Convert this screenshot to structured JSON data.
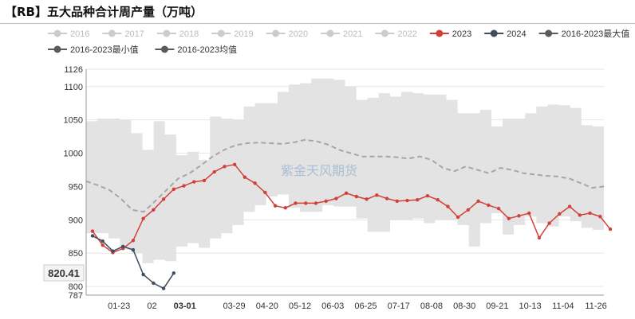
{
  "title": "【RB】五大品种合计周产量（万吨）",
  "watermark": "紫金天风期货",
  "colors": {
    "band": "#e3e3e3",
    "avg": "#a6a6a6",
    "y2023": "#d2403a",
    "y2024": "#3f4d5e",
    "legend_dim": "#cccccc",
    "legend_max": "#5a5a5a",
    "grid": "#e6e6e6"
  },
  "legend": [
    {
      "label": "2016",
      "state": "dim"
    },
    {
      "label": "2017",
      "state": "dim"
    },
    {
      "label": "2018",
      "state": "dim"
    },
    {
      "label": "2019",
      "state": "dim"
    },
    {
      "label": "2020",
      "state": "dim"
    },
    {
      "label": "2021",
      "state": "dim"
    },
    {
      "label": "2022",
      "state": "dim"
    },
    {
      "label": "2023",
      "state": "active",
      "color": "#d2403a"
    },
    {
      "label": "2024",
      "state": "active",
      "color": "#3f4d5e"
    },
    {
      "label": "2016-2023最大值",
      "state": "active",
      "color": "#5a5a5a"
    },
    {
      "label": "2016-2023最小值",
      "state": "active",
      "color": "#5a5a5a"
    },
    {
      "label": "2016-2023均值",
      "state": "active",
      "color": "#5a5a5a"
    }
  ],
  "chart_data": {
    "type": "line",
    "title": "【RB】五大品种合计周产量（万吨）",
    "ylim": [
      787,
      1126
    ],
    "y_ticks": [
      787,
      800,
      850,
      900,
      950,
      1000,
      1050,
      1100,
      1126
    ],
    "x_labels": [
      "01-23",
      "02",
      "03-01",
      "03-29",
      "04-20",
      "05-12",
      "06-03",
      "06-25",
      "07-17",
      "08-08",
      "08-30",
      "09-21",
      "10-13",
      "11-04",
      "11-26"
    ],
    "x_label_positions": [
      2,
      4,
      6,
      9,
      11,
      13,
      15,
      17,
      19,
      21,
      23,
      25,
      27,
      29,
      31
    ],
    "highlighted_x_label": "03-01",
    "grid": true,
    "band": {
      "name": "2016-2023最大值 / 2016-2023最小值",
      "max": [
        1048,
        1052,
        1052,
        1050,
        1030,
        1005,
        1048,
        1028,
        997,
        1002,
        990,
        1055,
        1052,
        1050,
        1070,
        1075,
        1075,
        1092,
        1103,
        1105,
        1112,
        1112,
        1110,
        1100,
        1080,
        1083,
        1090,
        1085,
        1092,
        1090,
        1088,
        1088,
        1080,
        1060,
        1060,
        1065,
        1040,
        1052,
        1052,
        1060,
        1070,
        1073,
        1072,
        1068,
        1042,
        1040
      ],
      "min": [
        880,
        880,
        872,
        855,
        850,
        835,
        840,
        838,
        860,
        865,
        858,
        872,
        880,
        892,
        912,
        922,
        935,
        938,
        918,
        912,
        912,
        922,
        920,
        920,
        902,
        882,
        882,
        900,
        900,
        902,
        895,
        900,
        900,
        892,
        860,
        895,
        910,
        878,
        892,
        905,
        895,
        890,
        905,
        898,
        888,
        885
      ]
    },
    "series": [
      {
        "name": "2016-2023均值",
        "style": "dashed",
        "values": [
          958,
          952,
          945,
          932,
          915,
          912,
          928,
          945,
          962,
          970,
          982,
          995,
          1005,
          1012,
          1015,
          1016,
          1015,
          1014,
          1016,
          1020,
          1018,
          1013,
          1005,
          1000,
          995,
          995,
          995,
          994,
          992,
          995,
          990,
          978,
          973,
          980,
          975,
          970,
          978,
          975,
          970,
          968,
          966,
          965,
          962,
          955,
          948,
          950
        ]
      },
      {
        "name": "2023",
        "values": [
          883,
          862,
          851,
          857,
          869,
          902,
          915,
          931,
          946,
          951,
          957,
          959,
          972,
          980,
          983,
          964,
          955,
          941,
          921,
          918,
          925,
          925,
          925,
          928,
          932,
          940,
          935,
          931,
          937,
          932,
          928,
          929,
          930,
          936,
          930,
          920,
          904,
          915,
          928,
          922,
          917,
          902,
          906,
          910,
          873,
          895,
          909,
          920,
          907,
          910,
          905,
          886
        ]
      },
      {
        "name": "2024",
        "values": [
          876,
          868,
          853,
          860,
          855,
          818,
          805,
          797,
          820
        ]
      }
    ],
    "callout": {
      "label": "820.41",
      "value": 820.41
    }
  }
}
